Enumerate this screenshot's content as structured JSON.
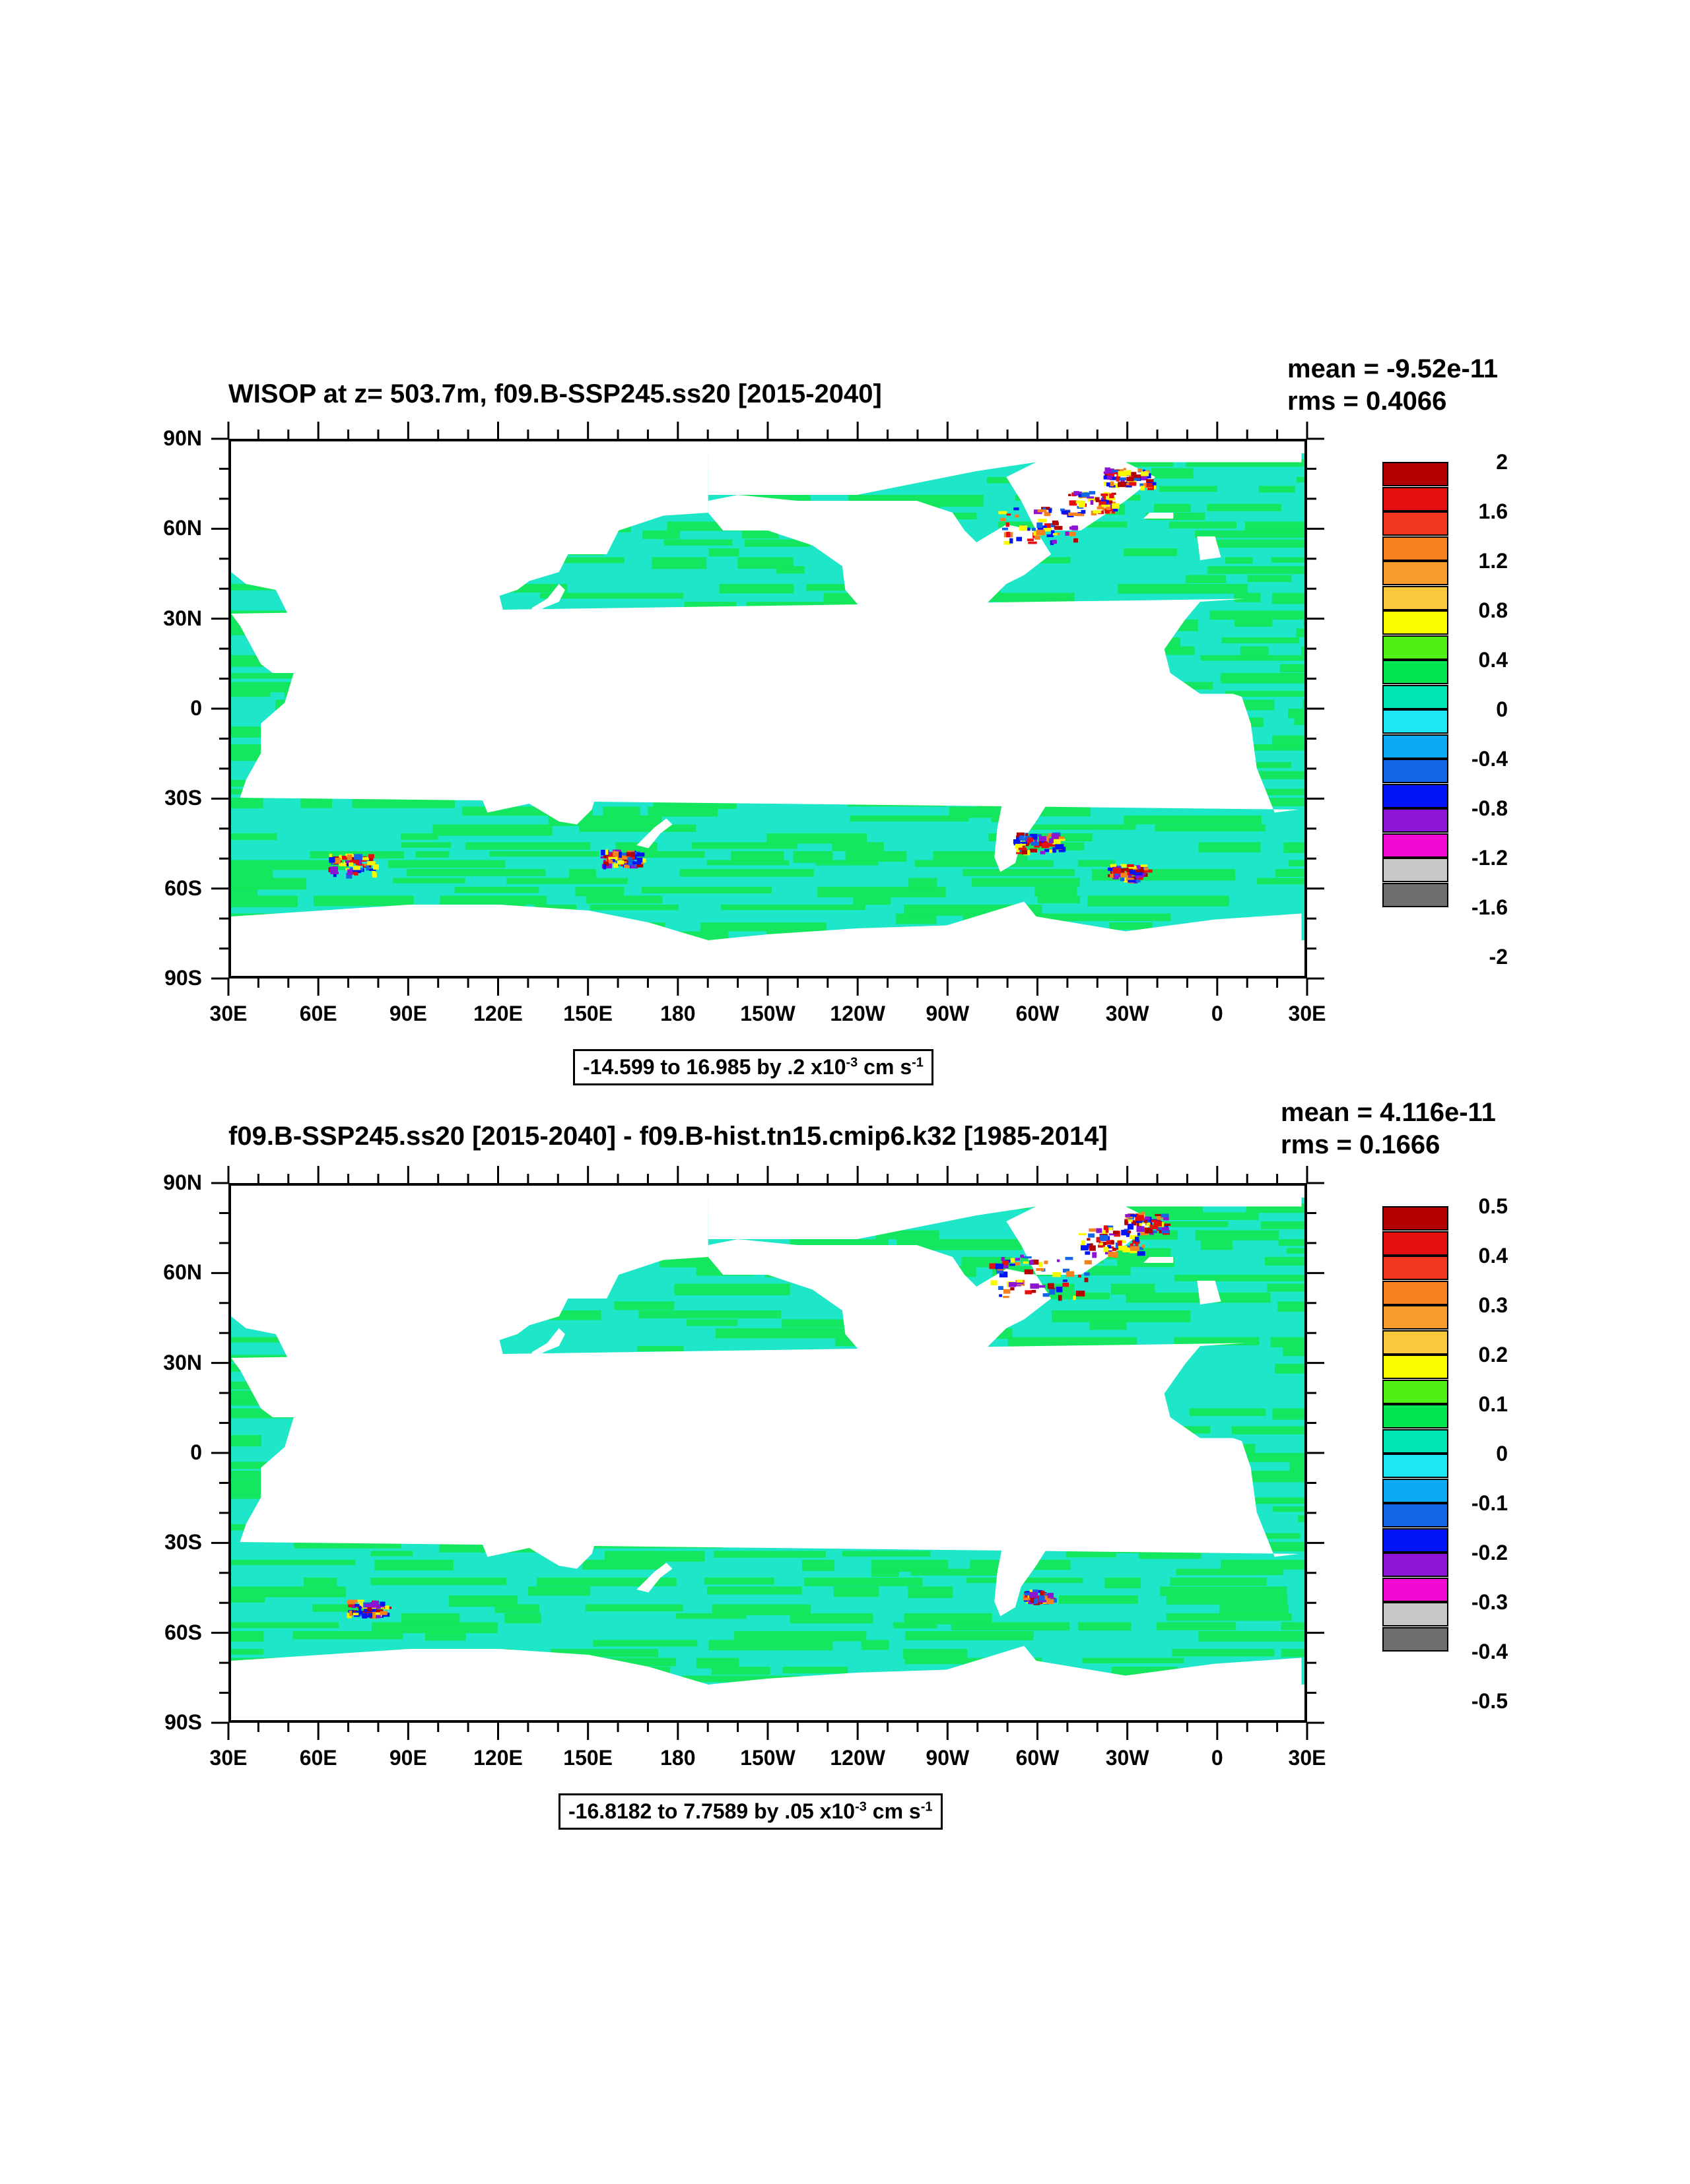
{
  "lon_labels": [
    "30E",
    "60E",
    "90E",
    "120E",
    "150E",
    "180",
    "150W",
    "120W",
    "90W",
    "60W",
    "30W",
    "0",
    "30E"
  ],
  "lat_labels": [
    "90N",
    "60N",
    "30N",
    "0",
    "30S",
    "60S",
    "90S"
  ],
  "panels": [
    {
      "title": "WISOP at z= 503.7m, f09.B-SSP245.ss20 [2015-2040]",
      "mean": "mean = -9.52e-11",
      "rms": "rms = 0.4066",
      "info": {
        "prefix": "-14.599 to 16.985 by .2 x10",
        "exp": "-3",
        "mid": " cm s",
        "unit_exp": "-1"
      },
      "colorbar": {
        "levels": [
          "2",
          "1.6",
          "1.2",
          "0.8",
          "0.4",
          "0",
          "-0.4",
          "-0.8",
          "-1.2",
          "-1.6",
          "-2"
        ],
        "colors": [
          "#b30000",
          "#e60f0f",
          "#f0361e",
          "#f5821e",
          "#f79b2d",
          "#fac83c",
          "#fafa00",
          "#50f014",
          "#00e650",
          "#00e6b4",
          "#1ee6f5",
          "#0aaaf5",
          "#1464e6",
          "#0014f5",
          "#8c14d2",
          "#f00ad2",
          "#c8c8c8",
          "#6e6e6e"
        ]
      }
    },
    {
      "title": "f09.B-SSP245.ss20 [2015-2040] - f09.B-hist.tn15.cmip6.k32 [1985-2014]",
      "mean": "mean = 4.116e-11",
      "rms": "rms = 0.1666",
      "info": {
        "prefix": "-16.8182 to 7.7589 by .05 x10",
        "exp": "-3",
        "mid": " cm s",
        "unit_exp": "-1"
      },
      "colorbar": {
        "levels": [
          "0.5",
          "0.4",
          "0.3",
          "0.2",
          "0.1",
          "0",
          "-0.1",
          "-0.2",
          "-0.3",
          "-0.4",
          "-0.5"
        ],
        "colors": [
          "#b30000",
          "#e60f0f",
          "#f0361e",
          "#f5821e",
          "#f79b2d",
          "#fac83c",
          "#fafa00",
          "#50f014",
          "#00e650",
          "#00e6b4",
          "#1ee6f5",
          "#0aaaf5",
          "#1464e6",
          "#0014f5",
          "#8c14d2",
          "#f00ad2",
          "#c8c8c8",
          "#6e6e6e"
        ]
      }
    }
  ],
  "map_colors": {
    "ocean_a": "#1ee6c8",
    "ocean_b": "#14e65a",
    "land": "#ffffff"
  }
}
